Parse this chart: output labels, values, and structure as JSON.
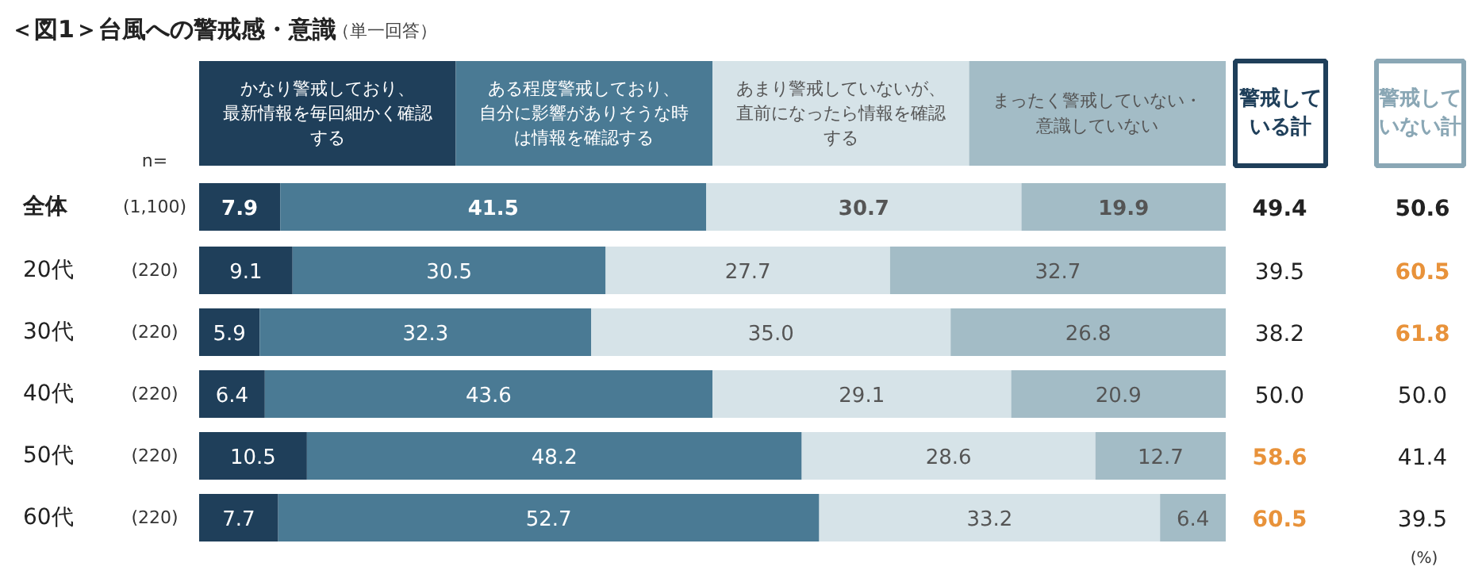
{
  "chart_data": {
    "type": "bar",
    "orientation": "horizontal",
    "stacked": true,
    "legend": "top",
    "title": "＜図1＞台風への警戒感・意識",
    "subtitle": "（単一回答）",
    "categories": [
      "全体",
      "20代",
      "30代",
      "40代",
      "50代",
      "60代"
    ],
    "series": [
      {
        "name": "かなり警戒しており、最新情報を毎回細かく確認する",
        "color": "#1f3f5a",
        "values": [
          7.9,
          9.1,
          5.9,
          6.4,
          10.5,
          7.7
        ],
        "value_labels": [
          "7.9",
          "9.1",
          "5.9",
          "6.4",
          "10.5",
          "7.7"
        ]
      },
      {
        "name": "ある程度警戒しており、自分に影響がありそうな時は情報を確認する",
        "color": "#4a7a94",
        "values": [
          41.5,
          30.5,
          32.3,
          43.6,
          48.2,
          52.7
        ],
        "value_labels": [
          "41.5",
          "30.5",
          "32.3",
          "43.6",
          "48.2",
          "52.7"
        ]
      },
      {
        "name": "あまり警戒していないが、直前になったら情報を確認する",
        "color": "#d6e3e8",
        "values": [
          30.7,
          27.7,
          35.0,
          29.1,
          28.6,
          33.2
        ],
        "value_labels": [
          "30.7",
          "27.7",
          "35.0",
          "29.1",
          "28.6",
          "33.2"
        ]
      },
      {
        "name": "まったく警戒していない・意識していない",
        "color": "#a3bcc6",
        "values": [
          19.9,
          32.7,
          26.8,
          20.9,
          12.7,
          6.4
        ],
        "value_labels": [
          "19.9",
          "32.7",
          "26.8",
          "20.9",
          "12.7",
          "6.4"
        ]
      }
    ],
    "totals": [
      [
        "49.4",
        "50.6"
      ],
      [
        "39.5",
        "60.5"
      ],
      [
        "38.2",
        "61.8"
      ],
      [
        "50.0",
        "50.0"
      ],
      [
        "58.6",
        "41.4"
      ],
      [
        "60.5",
        "39.5"
      ]
    ],
    "annotations": [
      "n=",
      "(1,100)",
      "(220)",
      "(220)",
      "(220)",
      "(220)",
      "(220)",
      "警戒している計",
      "警戒していない計",
      "(%)"
    ]
  }
}
